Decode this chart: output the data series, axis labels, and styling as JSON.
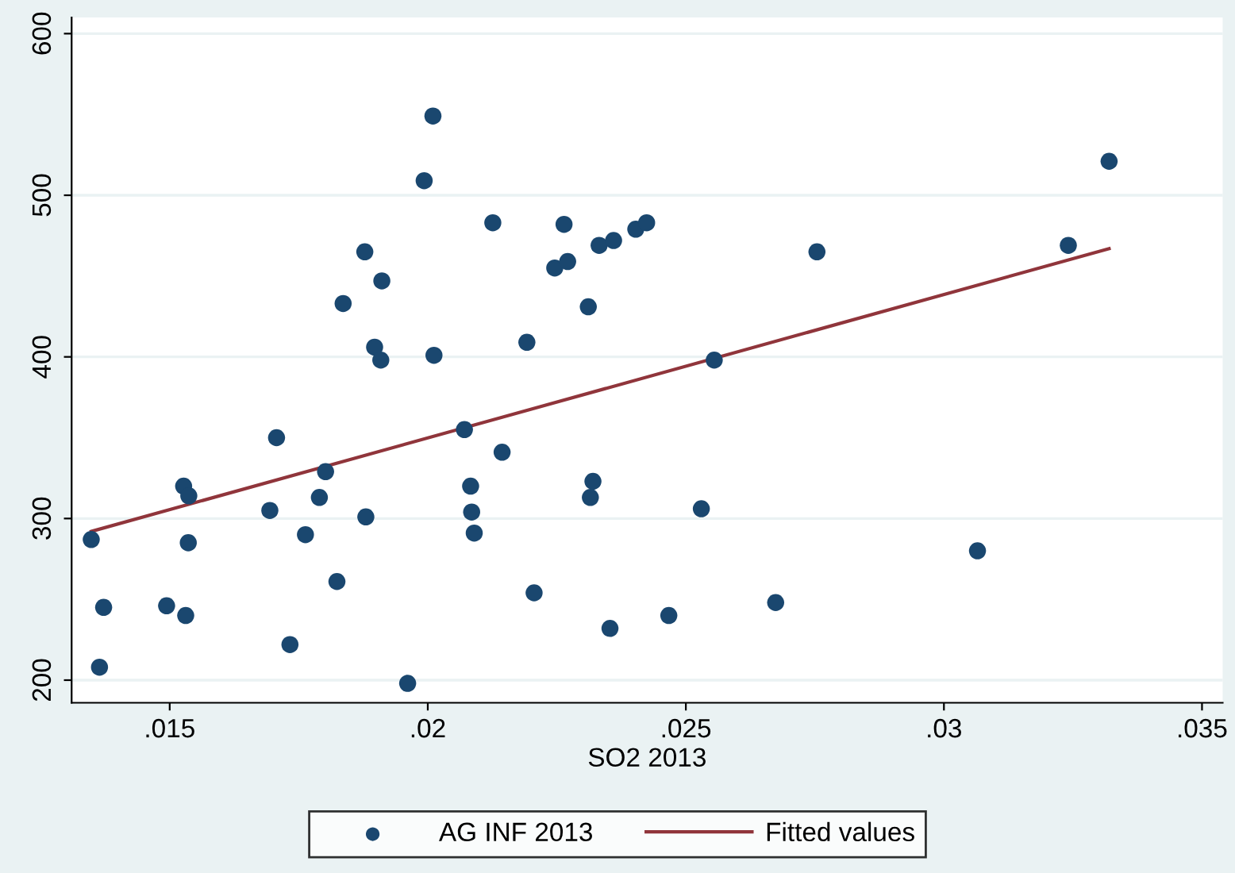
{
  "chart_data": {
    "type": "scatter",
    "xlabel": "SO2 2013",
    "xlim": [
      0.0131,
      0.0354
    ],
    "ylim": [
      186,
      610
    ],
    "xticks": [
      {
        "value": 0.015,
        "label": ".015"
      },
      {
        "value": 0.02,
        "label": ".02"
      },
      {
        "value": 0.025,
        "label": ".025"
      },
      {
        "value": 0.03,
        "label": ".03"
      },
      {
        "value": 0.035,
        "label": ".035"
      }
    ],
    "yticks": [
      200,
      300,
      400,
      500,
      600
    ],
    "grid": "y",
    "legend": "bottom",
    "series": [
      {
        "name": "AG INF 2013",
        "type": "scatter",
        "marker": "circle",
        "color": "#1a476f",
        "x": [
          0.01348,
          0.01372,
          0.01364,
          0.01494,
          0.01531,
          0.01527,
          0.01537,
          0.01536,
          0.01707,
          0.01694,
          0.01763,
          0.0179,
          0.01802,
          0.01824,
          0.01733,
          0.0188,
          0.01836,
          0.01878,
          0.01911,
          0.01897,
          0.01909,
          0.01961,
          0.01993,
          0.0201,
          0.02012,
          0.02126,
          0.02071,
          0.02083,
          0.02085,
          0.0209,
          0.02144,
          0.02192,
          0.02206,
          0.02264,
          0.02246,
          0.02271,
          0.02311,
          0.0232,
          0.02315,
          0.02332,
          0.0236,
          0.02353,
          0.02403,
          0.02424,
          0.02467,
          0.0253,
          0.02555,
          0.02674,
          0.02754,
          0.03065,
          0.03241,
          0.0332
        ],
        "values": [
          287,
          245,
          208,
          246,
          240,
          320,
          314,
          285,
          350,
          305,
          290,
          313,
          329,
          261,
          222,
          301,
          433,
          465,
          447,
          406,
          398,
          198,
          509,
          549,
          401,
          483,
          355,
          320,
          304,
          291,
          341,
          409,
          254,
          482,
          455,
          459,
          431,
          323,
          313,
          469,
          472,
          232,
          479,
          483,
          240,
          306,
          398,
          248,
          465,
          280,
          469,
          521
        ]
      },
      {
        "name": "Fitted values",
        "type": "line",
        "color": "#90353b",
        "line_style": "solid",
        "x": [
          0.01348,
          0.0332
        ],
        "values": [
          292,
          467
        ]
      }
    ]
  }
}
